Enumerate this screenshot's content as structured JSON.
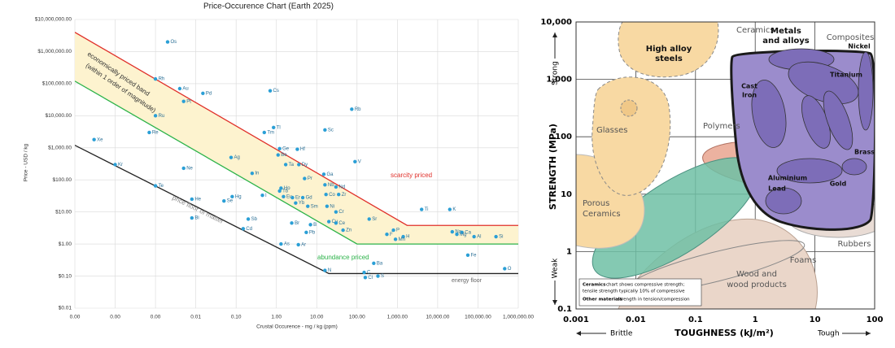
{
  "chart_data": [
    {
      "type": "loglog-scatter",
      "title": "Price-Occurence Chart (Earth 2025)",
      "xlabel": "Crustal Occurence - mg / kg (ppm)",
      "ylabel": "Price - USD / kg",
      "log": true,
      "grid": true,
      "xlim": [
        1e-05,
        1000000
      ],
      "ylim": [
        0.01,
        10000000
      ],
      "xticks": [
        {
          "value": 1e-05,
          "label": "0.00"
        },
        {
          "value": 0.0001,
          "label": "0.00"
        },
        {
          "value": 0.001,
          "label": "0.00"
        },
        {
          "value": 0.01,
          "label": "0.01"
        },
        {
          "value": 0.1,
          "label": "0.10"
        },
        {
          "value": 1,
          "label": "1.00"
        },
        {
          "value": 10,
          "label": "10.00"
        },
        {
          "value": 100,
          "label": "100.00"
        },
        {
          "value": 1000,
          "label": "1,000.00"
        },
        {
          "value": 10000,
          "label": "10,000.00"
        },
        {
          "value": 100000,
          "label": "100,000.00"
        },
        {
          "value": 1000000,
          "label": "1,000,000.00"
        }
      ],
      "yticks": [
        {
          "value": 0.01,
          "label": "$0.01"
        },
        {
          "value": 0.1,
          "label": "$0.10"
        },
        {
          "value": 1,
          "label": "$1.00"
        },
        {
          "value": 10,
          "label": "$10.00"
        },
        {
          "value": 100,
          "label": "$100.00"
        },
        {
          "value": 1000,
          "label": "$1,000.00"
        },
        {
          "value": 10000,
          "label": "$10,000.00"
        },
        {
          "value": 100000,
          "label": "$100,000.00"
        },
        {
          "value": 1000000,
          "label": "$1,000,000.00"
        },
        {
          "value": 10000000,
          "label": "$10,000,000.00"
        }
      ],
      "band_color": "#fdf3cf",
      "lines": [
        {
          "color": "#e0302a",
          "x": [
            1e-05,
            1750,
            1000000
          ],
          "values": [
            4000000,
            3.8,
            3.8
          ]
        },
        {
          "color": "#2db34a",
          "x": [
            1e-05,
            100,
            1000000
          ],
          "values": [
            120000,
            1,
            1
          ]
        },
        {
          "color": "#222222",
          "x": [
            1e-05,
            20,
            1000000
          ],
          "values": [
            1200,
            0.12,
            0.12
          ]
        }
      ],
      "points": {
        "color": "#2a9fd6",
        "labels": [
          "Os",
          "Rh",
          "Au",
          "Pd",
          "Pt",
          "Ru",
          "Re",
          "Xe",
          "Kr",
          "Ne",
          "Te",
          "He",
          "Bi",
          "Se",
          "Hg",
          "Sb",
          "Cd",
          "Ag",
          "In",
          "I",
          "Tl",
          "Tm",
          "Cs",
          "Ge",
          "Hf",
          "Be",
          "Ta",
          "Dy",
          "Ga",
          "Pr",
          "Nb",
          "Nd",
          "Zr",
          "Co",
          "Ho",
          "Tb",
          "Eu",
          "Er",
          "Gd",
          "Yb",
          "Sm",
          "Ni",
          "Cr",
          "Br",
          "B",
          "Pb",
          "Cu",
          "Ce",
          "Zn",
          "Sr",
          "As",
          "Ar",
          "N",
          "P",
          "F",
          "H",
          "Mn",
          "Ba",
          "C",
          "S",
          "Cl",
          "Ti",
          "K",
          "Na",
          "Ca",
          "Mg",
          "Al",
          "Si",
          "Fe",
          "O",
          "Rb",
          "Sc",
          "V"
        ],
        "x": [
          0.002,
          0.001,
          0.004,
          0.015,
          0.005,
          0.001,
          0.0007,
          3e-05,
          0.0001,
          0.005,
          0.001,
          0.008,
          0.008,
          0.05,
          0.08,
          0.2,
          0.15,
          0.075,
          0.25,
          0.45,
          0.85,
          0.5,
          0.7,
          1.2,
          3.3,
          1.1,
          1.7,
          3.6,
          15,
          5,
          16,
          30,
          35,
          17,
          1.3,
          1.2,
          1.5,
          2.5,
          4.5,
          3,
          6,
          18,
          30,
          2.4,
          7,
          5.5,
          20,
          30,
          45,
          200,
          1.3,
          3.5,
          16,
          800,
          550,
          1400,
          900,
          260,
          150,
          330,
          160,
          4000,
          20000,
          23000,
          40000,
          30000,
          80000,
          280000,
          56000,
          460000,
          74,
          16,
          89
        ],
        "values": [
          2000000,
          140000,
          70000,
          50000,
          28000,
          10000,
          3000,
          1800,
          300,
          230,
          65,
          25,
          6.5,
          22,
          30,
          6,
          3,
          500,
          160,
          33,
          4300,
          3000,
          60000,
          940,
          900,
          600,
          300,
          300,
          150,
          110,
          70,
          60,
          35,
          35,
          55,
          45,
          30,
          28,
          28,
          19,
          15,
          15,
          10,
          4.5,
          4,
          2.3,
          5,
          4.5,
          2.7,
          6,
          1,
          0.95,
          0.15,
          2.7,
          2,
          1.7,
          1.4,
          0.25,
          0.13,
          0.1,
          0.09,
          12,
          12,
          2.4,
          2.3,
          2,
          1.7,
          1.7,
          0.45,
          0.17,
          16000,
          3600,
          370
        ]
      },
      "annotations": [
        {
          "text": "economically priced band",
          "color": "#333333"
        },
        {
          "text": "(within 1 order of magnitude)",
          "color": "#333333"
        },
        {
          "text": "scarcity priced",
          "color": "#e0302a"
        },
        {
          "text": "abundance priced",
          "color": "#2db34a"
        },
        {
          "text": "price floor of matter",
          "color": "#888888"
        },
        {
          "text": "energy floor",
          "color": "#666666"
        }
      ]
    },
    {
      "type": "ashby",
      "xlabel": "TOUGHNESS (kJ/m²)",
      "ylabel": "STRENGTH (MPa)",
      "log": true,
      "grid": true,
      "xlim": [
        0.001,
        100
      ],
      "ylim": [
        0.1,
        10000
      ],
      "xticks": [
        0.001,
        0.01,
        0.1,
        1,
        10,
        100
      ],
      "yticks": [
        0.1,
        1,
        10,
        100,
        {
          "value": 1000,
          "label": "1,000"
        },
        {
          "value": 10000,
          "label": "10,000"
        }
      ],
      "y_high": "Strong",
      "y_low": "Weak",
      "x_low": "Brittle",
      "x_high": "Tough",
      "labels": {
        "ceramics": "Ceramics",
        "steels_1": "High alloy",
        "steels_2": "steels",
        "metals_1": "Metals",
        "metals_2": "and alloys",
        "composites": "Composites",
        "nickel": "Nickel",
        "titanium": "Titanium",
        "cast_1": "Cast",
        "cast_2": "Iron",
        "glasses": "Glasses",
        "polymers": "Polymers",
        "brass": "Brass",
        "aluminium": "Aluminium",
        "lead": "Lead",
        "gold": "Gold",
        "porous_1": "Porous",
        "porous_2": "Ceramics",
        "rubbers": "Rubbers",
        "foams": "Foams",
        "wood_1": "Wood and",
        "wood_2": "wood products"
      },
      "note": [
        "Ceramics",
        "chart shows compressive strength;",
        "tensile strength typically 10% of compressive",
        "Other materials",
        "strength in tension/compression"
      ]
    }
  ]
}
